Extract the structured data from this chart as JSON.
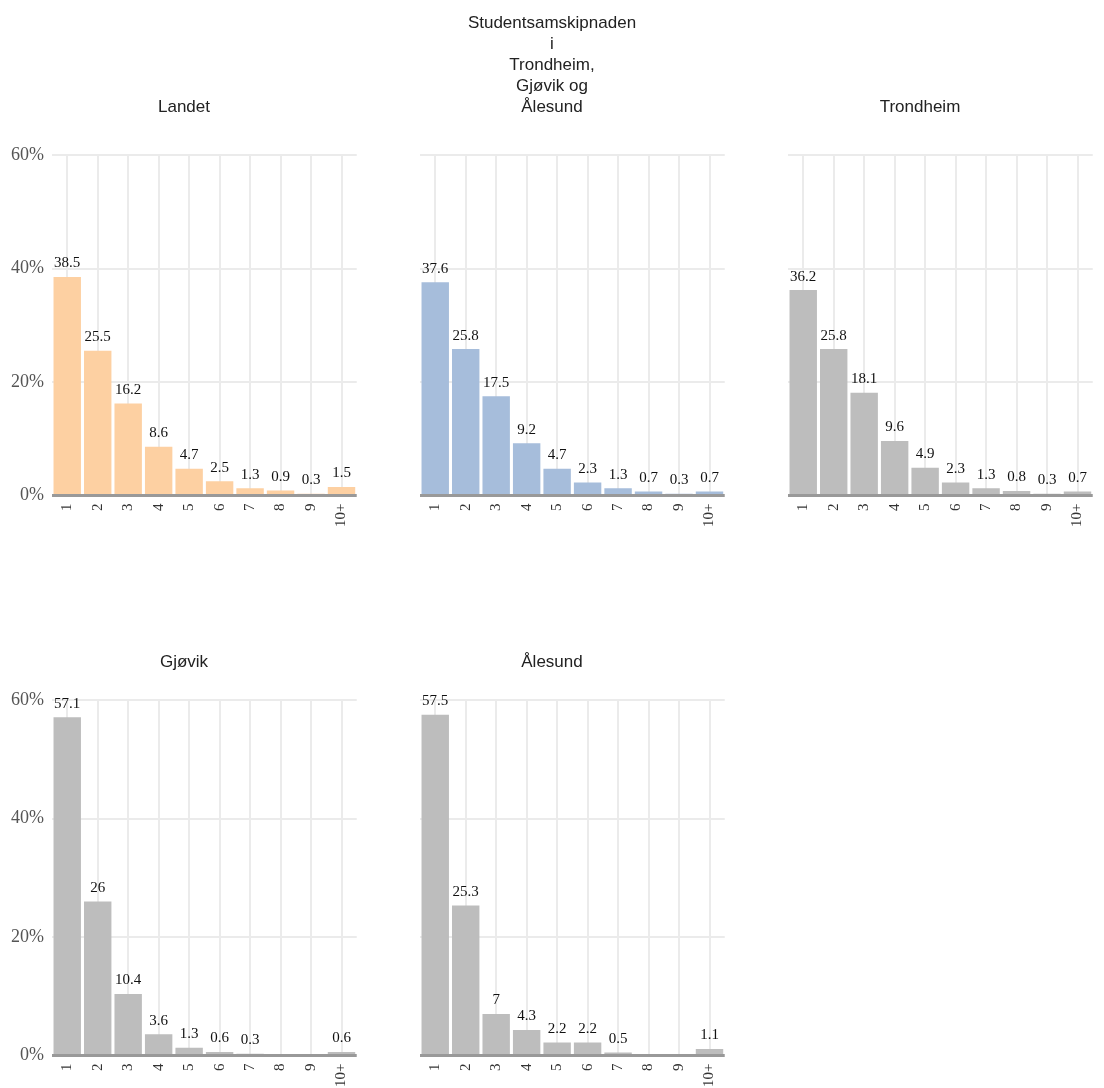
{
  "chart_data": [
    {
      "type": "bar",
      "title": "Landet",
      "categories": [
        "1",
        "2",
        "3",
        "4",
        "5",
        "6",
        "7",
        "8",
        "9",
        "10+"
      ],
      "values": [
        38.5,
        25.5,
        16.2,
        8.6,
        4.7,
        2.5,
        1.3,
        0.9,
        0.3,
        1.5
      ],
      "value_labels": [
        "38.5",
        "25.5",
        "16.2",
        "8.6",
        "4.7",
        "2.5",
        "1.3",
        "0.9",
        "0.3",
        "1.5"
      ],
      "color": "#fdd0a2",
      "ylim": [
        0,
        60
      ],
      "yticks": [
        {
          "value": 0,
          "label": "0%"
        },
        {
          "value": 20,
          "label": "20%"
        },
        {
          "value": 40,
          "label": "40%"
        },
        {
          "value": 60,
          "label": "60%"
        }
      ],
      "grid": true
    },
    {
      "type": "bar",
      "title": "Studentsamskipnaden\ni\nTrondheim,\nGjøvik og\nÅlesund",
      "categories": [
        "1",
        "2",
        "3",
        "4",
        "5",
        "6",
        "7",
        "8",
        "9",
        "10+"
      ],
      "values": [
        37.6,
        25.8,
        17.5,
        9.2,
        4.7,
        2.3,
        1.3,
        0.7,
        0.3,
        0.7
      ],
      "value_labels": [
        "37.6",
        "25.8",
        "17.5",
        "9.2",
        "4.7",
        "2.3",
        "1.3",
        "0.7",
        "0.3",
        "0.7"
      ],
      "color": "#a6bddb",
      "ylim": [
        0,
        60
      ],
      "yticks": [
        0,
        20,
        40,
        60
      ],
      "grid": true,
      "tick_labels": "x"
    },
    {
      "type": "bar",
      "title": "Trondheim",
      "categories": [
        "1",
        "2",
        "3",
        "4",
        "5",
        "6",
        "7",
        "8",
        "9",
        "10+"
      ],
      "values": [
        36.2,
        25.8,
        18.1,
        9.6,
        4.9,
        2.3,
        1.3,
        0.8,
        0.3,
        0.7
      ],
      "value_labels": [
        "36.2",
        "25.8",
        "18.1",
        "9.6",
        "4.9",
        "2.3",
        "1.3",
        "0.8",
        "0.3",
        "0.7"
      ],
      "color": "#bdbdbd",
      "ylim": [
        0,
        60
      ],
      "yticks": [
        0,
        20,
        40,
        60
      ],
      "grid": true,
      "tick_labels": "x"
    },
    {
      "type": "bar",
      "title": "Gjøvik",
      "categories": [
        "1",
        "2",
        "3",
        "4",
        "5",
        "6",
        "7",
        "8",
        "9",
        "10+"
      ],
      "values": [
        57.1,
        26,
        10.4,
        3.6,
        1.3,
        0.6,
        0.3,
        0,
        0,
        0.6
      ],
      "value_labels": [
        "57.1",
        "26",
        "10.4",
        "3.6",
        "1.3",
        "0.6",
        "0.3",
        null,
        null,
        "0.6"
      ],
      "color": "#bdbdbd",
      "ylim": [
        0,
        60
      ],
      "yticks": [
        {
          "value": 0,
          "label": "0%"
        },
        {
          "value": 20,
          "label": "20%"
        },
        {
          "value": 40,
          "label": "40%"
        },
        {
          "value": 60,
          "label": "60%"
        }
      ],
      "grid": true
    },
    {
      "type": "bar",
      "title": "Ålesund",
      "categories": [
        "1",
        "2",
        "3",
        "4",
        "5",
        "6",
        "7",
        "8",
        "9",
        "10+"
      ],
      "values": [
        57.5,
        25.3,
        7,
        4.3,
        2.2,
        2.2,
        0.5,
        0,
        0,
        1.1
      ],
      "value_labels": [
        "57.5",
        "25.3",
        "7",
        "4.3",
        "2.2",
        "2.2",
        "0.5",
        null,
        null,
        "1.1"
      ],
      "color": "#bdbdbd",
      "ylim": [
        0,
        60
      ],
      "yticks": [
        0,
        20,
        40,
        60
      ],
      "grid": true,
      "tick_labels": "x"
    }
  ]
}
